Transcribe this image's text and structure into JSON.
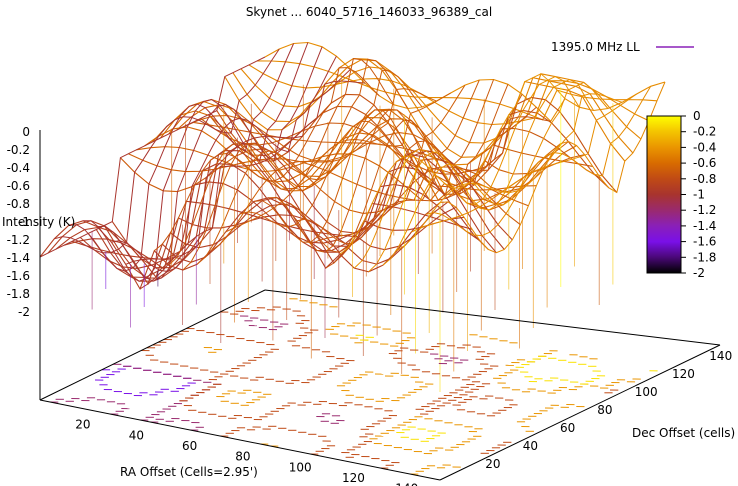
{
  "chart_data": {
    "type": "surface3d",
    "title": "Skynet ... 6040_5716_146033_96389_cal",
    "zlabel": "Intensity (K)",
    "xlabel": "RA Offset (Cells=2.95')",
    "ylabel": "Dec Offset (cells)",
    "legend": {
      "entries": [
        "1395.0 MHz LL"
      ],
      "placement": "top-right"
    },
    "xlim": [
      0,
      150
    ],
    "ylim": [
      0,
      150
    ],
    "zlim": [
      -2,
      0
    ],
    "x_ticks": [
      "20",
      "40",
      "60",
      "80",
      "100",
      "120",
      "140"
    ],
    "y_ticks": [
      "20",
      "40",
      "60",
      "80",
      "100",
      "120",
      "140"
    ],
    "z_ticks": [
      "0",
      "-0.2",
      "-0.4",
      "-0.6",
      "-0.8",
      "-1",
      "-1.2",
      "-1.4",
      "-1.6",
      "-1.8",
      "-2"
    ],
    "colorbar": {
      "range": [
        -2,
        0
      ],
      "ticks": [
        "0",
        "-0.2",
        "-0.4",
        "-0.6",
        "-0.8",
        "-1",
        "-1.2",
        "-1.4",
        "-1.6",
        "-1.8",
        "-2"
      ],
      "colors": [
        "#ffff00",
        "#f4c400",
        "#ea9500",
        "#d86b00",
        "#c04a15",
        "#a8342e",
        "#9a2a6e",
        "#8a20b8",
        "#7a10e8",
        "#4a0878",
        "#000000"
      ]
    },
    "grid": false
  }
}
